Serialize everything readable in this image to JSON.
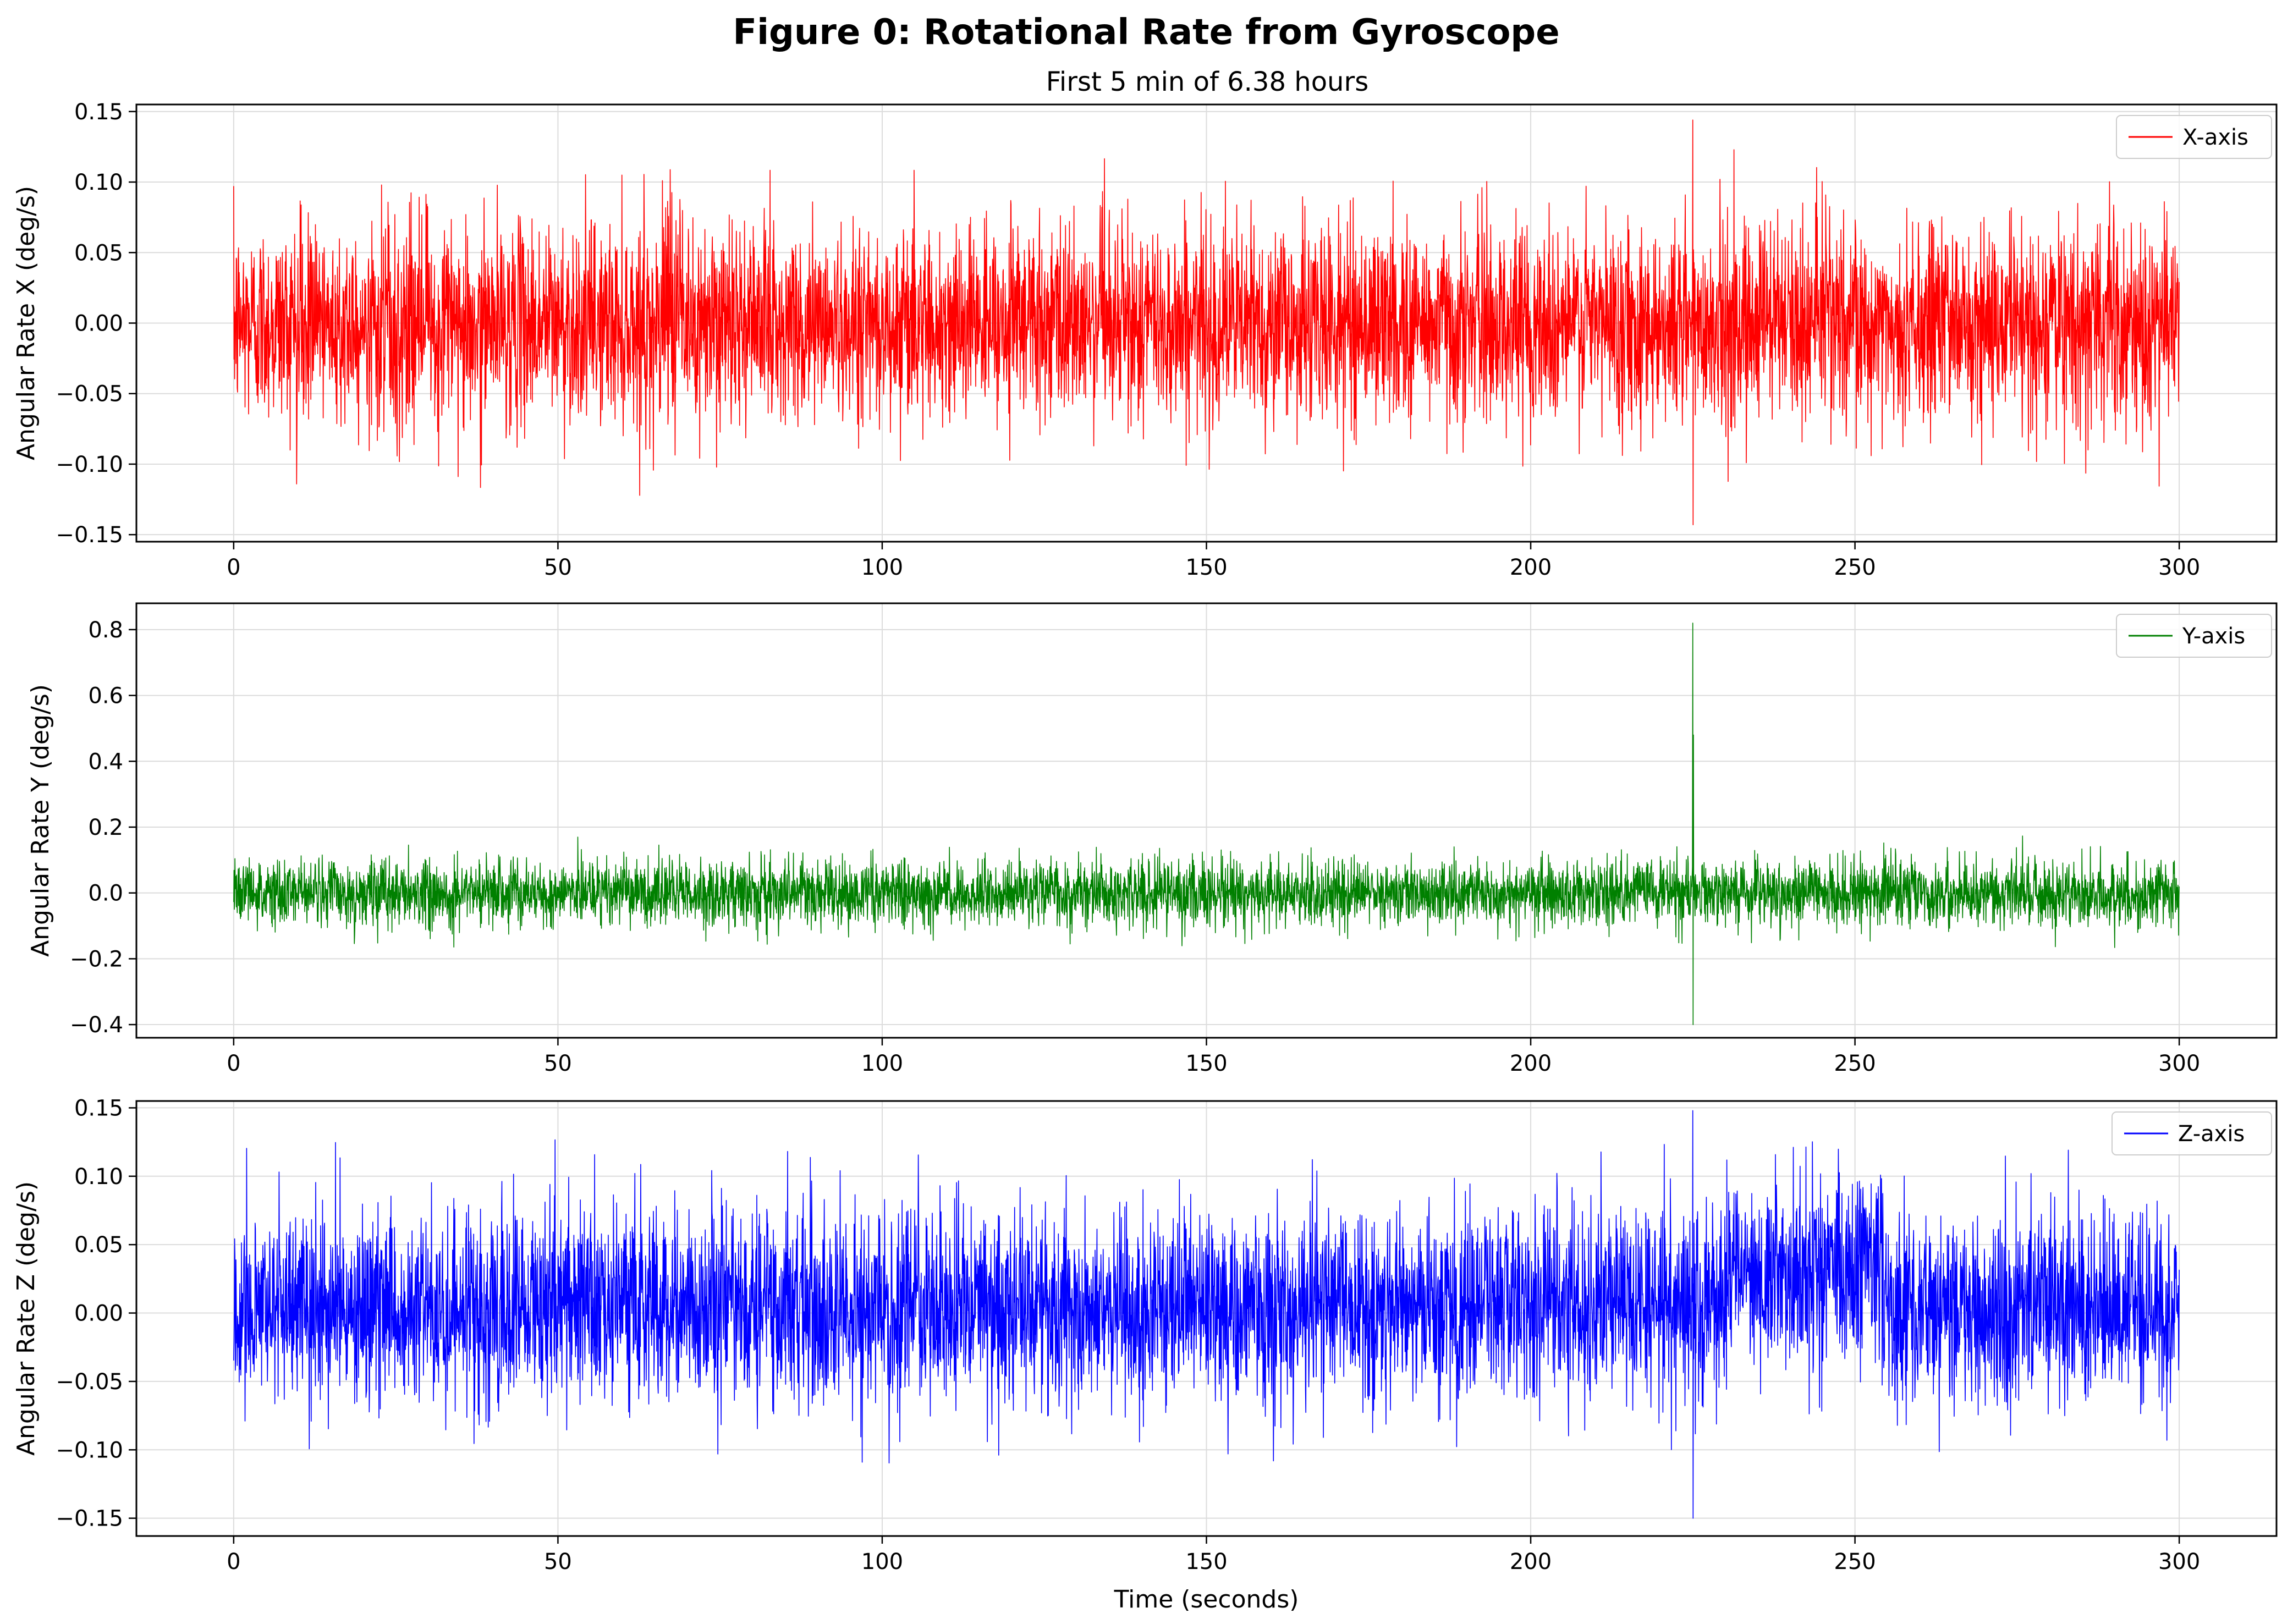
{
  "figure": {
    "title": "Figure 0: Rotational Rate from Gyroscope",
    "subtitle": "First 5 min of 6.38 hours"
  },
  "chart_data": [
    {
      "type": "line",
      "series": [
        {
          "name": "X-axis",
          "color": "#ff0000"
        }
      ],
      "xlabel": "",
      "ylabel": "Angular Rate X (deg/s)",
      "xlim": [
        -15,
        315
      ],
      "ylim": [
        -0.155,
        0.155
      ],
      "x_ticks": [
        0,
        50,
        100,
        150,
        200,
        250,
        300
      ],
      "x_tick_labels": [
        "0",
        "50",
        "100",
        "150",
        "200",
        "250",
        "300"
      ],
      "y_ticks": [
        -0.15,
        -0.1,
        -0.05,
        0.0,
        0.05,
        0.1,
        0.15
      ],
      "y_tick_labels": [
        "−0.15",
        "−0.10",
        "−0.05",
        "0.00",
        "0.05",
        "0.10",
        "0.15"
      ],
      "grid": true,
      "legend": "top-right",
      "signal": {
        "x_start": 0,
        "x_end": 300,
        "mean": 0.0,
        "std": 0.035,
        "peak_max": 0.144,
        "peak_min": -0.143,
        "spike_x": 225
      }
    },
    {
      "type": "line",
      "series": [
        {
          "name": "Y-axis",
          "color": "#008000"
        }
      ],
      "xlabel": "",
      "ylabel": "Angular Rate Y (deg/s)",
      "xlim": [
        -15,
        315
      ],
      "ylim": [
        -0.44,
        0.88
      ],
      "x_ticks": [
        0,
        50,
        100,
        150,
        200,
        250,
        300
      ],
      "x_tick_labels": [
        "0",
        "50",
        "100",
        "150",
        "200",
        "250",
        "300"
      ],
      "y_ticks": [
        -0.4,
        -0.2,
        0.0,
        0.2,
        0.4,
        0.6,
        0.8
      ],
      "y_tick_labels": [
        "−0.4",
        "−0.2",
        "0.0",
        "0.2",
        "0.4",
        "0.6",
        "0.8"
      ],
      "grid": true,
      "legend": "top-right",
      "signal": {
        "x_start": 0,
        "x_end": 300,
        "mean": 0.0,
        "std": 0.05,
        "peak_max": 0.82,
        "peak_min": -0.4,
        "spike_x": 225
      }
    },
    {
      "type": "line",
      "series": [
        {
          "name": "Z-axis",
          "color": "#0000ff"
        }
      ],
      "xlabel": "Time (seconds)",
      "ylabel": "Angular Rate Z (deg/s)",
      "xlim": [
        -15,
        315
      ],
      "ylim": [
        -0.163,
        0.155
      ],
      "x_ticks": [
        0,
        50,
        100,
        150,
        200,
        250,
        300
      ],
      "x_tick_labels": [
        "0",
        "50",
        "100",
        "150",
        "200",
        "250",
        "300"
      ],
      "y_ticks": [
        -0.15,
        -0.1,
        -0.05,
        0.0,
        0.05,
        0.1,
        0.15
      ],
      "y_tick_labels": [
        "−0.15",
        "−0.10",
        "−0.05",
        "0.00",
        "0.05",
        "0.10",
        "0.15"
      ],
      "grid": true,
      "legend": "top-right",
      "signal": {
        "x_start": 0,
        "x_end": 300,
        "mean": 0.005,
        "std": 0.035,
        "peak_max": 0.148,
        "peak_min": -0.15,
        "spike_x": 225,
        "mean_230_to_255": 0.03
      }
    }
  ]
}
